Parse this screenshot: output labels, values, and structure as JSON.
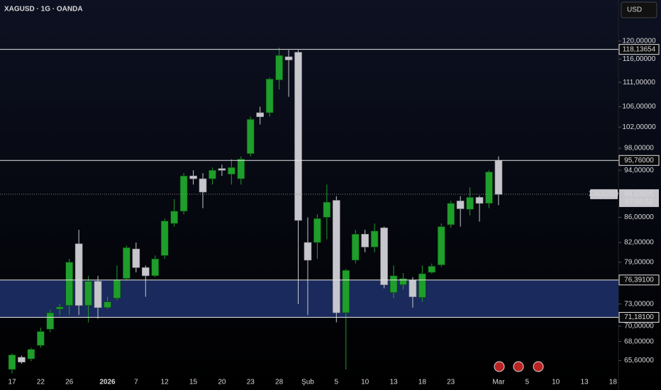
{
  "header": {
    "title": "XAGUSD · 1G · OANDA",
    "currency": "USD"
  },
  "chart_data": {
    "type": "candlestick",
    "categories": [
      "17",
      null,
      null,
      "22",
      null,
      null,
      "26",
      null,
      null,
      null,
      "2026",
      null,
      null,
      "7",
      null,
      null,
      "12",
      null,
      null,
      "15",
      null,
      null,
      "20",
      null,
      null,
      "23",
      null,
      null,
      "28",
      null,
      null,
      "Şub",
      null,
      null,
      "5",
      null,
      null,
      "10",
      null,
      null,
      "13",
      null,
      null,
      "18",
      null,
      null,
      "23",
      null,
      null,
      null,
      null,
      "Mar",
      null,
      null,
      "5",
      null,
      null,
      "10",
      null,
      null,
      "13",
      null,
      null,
      "18"
    ],
    "open": [
      64.5,
      66.0,
      65.8,
      67.5,
      69.6,
      72.3,
      72.8,
      81.8,
      72.8,
      76.2,
      72.5,
      73.8,
      76.6,
      81.0,
      78.2,
      77.0,
      80.0,
      85.0,
      87.0,
      93.0,
      92.5,
      92.5,
      94.3,
      93.3,
      92.5,
      97.0,
      104.8,
      104.8,
      111.5,
      116.5,
      117.5,
      82.0,
      82.0,
      86.0,
      88.8,
      71.8,
      79.3,
      83.3,
      81.3,
      84.3,
      74.6,
      75.7,
      76.4,
      73.9,
      77.5,
      78.6,
      84.8,
      88.7,
      87.3,
      89.3,
      88.3,
      95.7,
      null,
      null,
      null,
      null,
      null,
      null,
      null,
      null,
      null,
      null,
      null,
      null
    ],
    "high": [
      66.5,
      66.2,
      67.2,
      69.8,
      72.2,
      73.0,
      79.5,
      84.0,
      77.0,
      77.0,
      74.0,
      78.5,
      81.5,
      82.0,
      78.5,
      80.0,
      85.8,
      89.0,
      93.5,
      94.0,
      93.5,
      94.5,
      95.0,
      96.0,
      96.5,
      104.0,
      106.0,
      112.0,
      118.5,
      118.0,
      118.0,
      86.0,
      86.5,
      91.5,
      89.5,
      78.0,
      84.0,
      84.0,
      85.0,
      84.5,
      78.5,
      77.4,
      76.8,
      78.5,
      78.8,
      85.0,
      88.7,
      89.5,
      91.0,
      89.6,
      94.0,
      96.5,
      null,
      null,
      null,
      null,
      null,
      null,
      null,
      null,
      null,
      null,
      null,
      null
    ],
    "low": [
      64.0,
      65.2,
      65.5,
      67.2,
      69.2,
      71.5,
      71.5,
      71.5,
      70.5,
      71.0,
      72.3,
      73.5,
      76.3,
      77.5,
      74.0,
      76.8,
      79.5,
      84.5,
      86.5,
      91.5,
      87.5,
      91.5,
      93.0,
      91.5,
      91.5,
      96.5,
      102.5,
      104.0,
      109.5,
      108.0,
      73.0,
      71.5,
      79.5,
      82.5,
      70.5,
      64.5,
      78.8,
      80.5,
      80.5,
      75.2,
      73.8,
      75.0,
      72.5,
      73.3,
      77.3,
      78.3,
      84.3,
      84.5,
      86.3,
      85.3,
      87.5,
      88.0,
      null,
      null,
      null,
      null,
      null,
      null,
      null,
      null,
      null,
      null,
      null,
      null
    ],
    "close": [
      66.3,
      65.4,
      67.0,
      69.3,
      71.8,
      72.6,
      79.0,
      72.8,
      76.2,
      72.5,
      73.3,
      76.4,
      81.2,
      78.2,
      77.0,
      79.5,
      85.4,
      87.0,
      93.0,
      92.5,
      90.2,
      94.0,
      94.0,
      94.5,
      96.0,
      103.5,
      104.0,
      111.7,
      116.8,
      115.8,
      85.5,
      79.3,
      85.8,
      88.5,
      71.8,
      77.8,
      83.3,
      81.3,
      83.8,
      75.7,
      77.0,
      76.6,
      74.0,
      77.3,
      78.4,
      84.5,
      88.3,
      87.4,
      89.3,
      88.3,
      93.7,
      89.8,
      null,
      null,
      null,
      null,
      null,
      null,
      null,
      null,
      null,
      null,
      null,
      null
    ],
    "up_color": "#1e9e2a",
    "down_color": "#c6c6cc",
    "ylim": [
      63.9,
      129.7
    ],
    "log_scale": true,
    "yticks": [
      {
        "value": 120,
        "label": "120,00000"
      },
      {
        "value": 116,
        "label": "116,00000"
      },
      {
        "value": 111,
        "label": "111,00000"
      },
      {
        "value": 106,
        "label": "106,00000"
      },
      {
        "value": 102,
        "label": "102,00000"
      },
      {
        "value": 98,
        "label": "98,00000"
      },
      {
        "value": 94,
        "label": "94,00000"
      },
      {
        "value": 86,
        "label": "86,00000"
      },
      {
        "value": 82,
        "label": "82,00000"
      },
      {
        "value": 79,
        "label": "79,00000"
      },
      {
        "value": 73,
        "label": "73,00000"
      },
      {
        "value": 70,
        "label": "70,00000"
      },
      {
        "value": 68,
        "label": "68,00000"
      },
      {
        "value": 65.6,
        "label": "65,60000"
      }
    ],
    "levels": [
      {
        "value": 118.13654,
        "label": "118,13654"
      },
      {
        "value": 95.76,
        "label": "95,76000"
      },
      {
        "value": 76.391,
        "label": "76,39100"
      },
      {
        "value": 71.181,
        "label": "71,18100"
      }
    ],
    "zone_color": "#1a2a5c",
    "current_price": {
      "symbol": "XAGUSD",
      "value": 89.83505,
      "label": "89,83505",
      "countdown": "07:06:52"
    }
  }
}
